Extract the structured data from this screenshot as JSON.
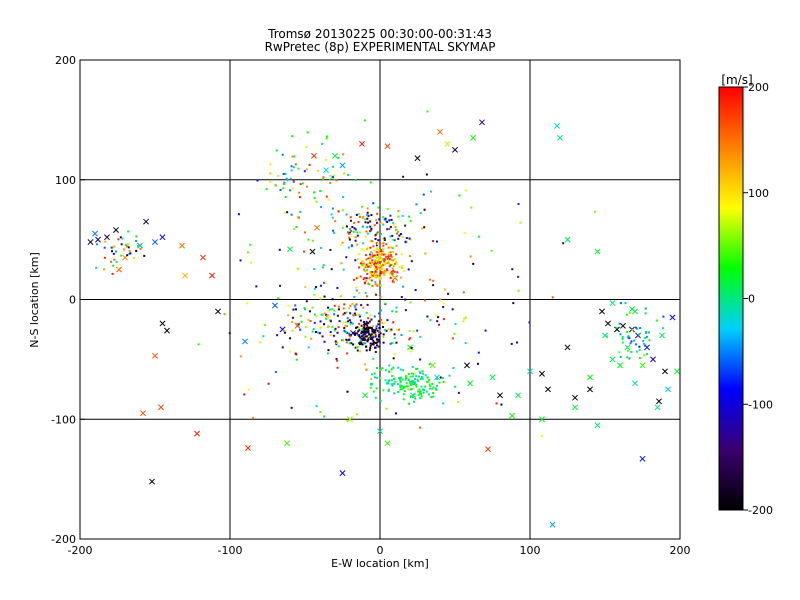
{
  "chart_data": {
    "type": "scatter",
    "title": "Tromsø 20130225 00:30:00-00:31:43",
    "subtitle": "RwPretec (8p) EXPERIMENTAL SKYMAP",
    "xlabel": "E-W location [km]",
    "ylabel": "N-S location [km]",
    "xlim": [
      -200,
      200
    ],
    "ylim": [
      -200,
      200
    ],
    "xticks": [
      "-200",
      "-100",
      "0",
      "100",
      "200"
    ],
    "yticks": [
      "-200",
      "-100",
      "0",
      "100",
      "200"
    ],
    "grid": true,
    "colorbar": {
      "label": "[m/s]",
      "range": [
        -200,
        200
      ],
      "ticks": [
        "200",
        "100",
        "0",
        "-100",
        "-200"
      ],
      "colors": [
        "#000000",
        "#3a0070",
        "#0000ff",
        "#00d0ff",
        "#00ff00",
        "#ffff00",
        "#ff8000",
        "#ff0000"
      ]
    },
    "series": [
      {
        "marker": "cross",
        "points": [
          [
            -193,
            48,
            -180
          ],
          [
            -188,
            50,
            -160
          ],
          [
            -182,
            52,
            -170
          ],
          [
            -176,
            58,
            -190
          ],
          [
            -156,
            65,
            -180
          ],
          [
            -145,
            52,
            -90
          ],
          [
            -150,
            48,
            -60
          ],
          [
            -190,
            55,
            -50
          ],
          [
            -160,
            45,
            -40
          ],
          [
            -152,
            -152,
            -200
          ],
          [
            -142,
            -26,
            -200
          ],
          [
            -145,
            -20,
            -190
          ],
          [
            -158,
            -95,
            160
          ],
          [
            -146,
            -90,
            170
          ],
          [
            -122,
            -112,
            190
          ],
          [
            -88,
            -124,
            180
          ],
          [
            -62,
            -120,
            40
          ],
          [
            -132,
            45,
            150
          ],
          [
            -118,
            35,
            180
          ],
          [
            -112,
            20,
            190
          ],
          [
            -130,
            20,
            120
          ],
          [
            -174,
            25,
            160
          ],
          [
            -170,
            35,
            140
          ],
          [
            -108,
            -10,
            -190
          ],
          [
            -70,
            -5,
            -60
          ],
          [
            -55,
            -22,
            170
          ],
          [
            -44,
            120,
            180
          ],
          [
            -42,
            60,
            150
          ],
          [
            -60,
            42,
            10
          ],
          [
            -45,
            40,
            -200
          ],
          [
            -32,
            102,
            50
          ],
          [
            -36,
            108,
            -20
          ],
          [
            -25,
            112,
            -40
          ],
          [
            -30,
            120,
            20
          ],
          [
            -12,
            130,
            190
          ],
          [
            5,
            128,
            170
          ],
          [
            25,
            118,
            -200
          ],
          [
            45,
            130,
            100
          ],
          [
            62,
            135,
            30
          ],
          [
            68,
            148,
            -140
          ],
          [
            50,
            125,
            -170
          ],
          [
            40,
            140,
            150
          ],
          [
            -5,
            20,
            140
          ],
          [
            10,
            18,
            170
          ],
          [
            -18,
            -28,
            -120
          ],
          [
            20,
            -40,
            30
          ],
          [
            35,
            -55,
            50
          ],
          [
            -10,
            -80,
            20
          ],
          [
            -20,
            -100,
            60
          ],
          [
            0,
            -110,
            0
          ],
          [
            -25,
            -145,
            -90
          ],
          [
            5,
            -120,
            40
          ],
          [
            22,
            -80,
            10
          ],
          [
            38,
            -65,
            -10
          ],
          [
            58,
            -55,
            -190
          ],
          [
            60,
            -70,
            20
          ],
          [
            75,
            -65,
            10
          ],
          [
            80,
            -80,
            -200
          ],
          [
            92,
            -80,
            10
          ],
          [
            88,
            -97,
            30
          ],
          [
            72,
            -125,
            170
          ],
          [
            100,
            -60,
            -10
          ],
          [
            108,
            -62,
            -200
          ],
          [
            112,
            -75,
            -190
          ],
          [
            125,
            -40,
            -180
          ],
          [
            130,
            -82,
            -190
          ],
          [
            140,
            -75,
            -200
          ],
          [
            145,
            -105,
            0
          ],
          [
            148,
            -10,
            -200
          ],
          [
            152,
            -20,
            -200
          ],
          [
            158,
            -25,
            -200
          ],
          [
            162,
            -22,
            -190
          ],
          [
            168,
            -25,
            -160
          ],
          [
            172,
            -30,
            -120
          ],
          [
            178,
            -40,
            -80
          ],
          [
            182,
            -50,
            -120
          ],
          [
            186,
            -85,
            -200
          ],
          [
            190,
            -60,
            -200
          ],
          [
            195,
            -15,
            -90
          ],
          [
            198,
            -60,
            20
          ],
          [
            165,
            -40,
            10
          ],
          [
            160,
            -55,
            20
          ],
          [
            175,
            -55,
            40
          ],
          [
            170,
            -70,
            -10
          ],
          [
            155,
            -50,
            10
          ],
          [
            185,
            -90,
            0
          ],
          [
            175,
            -133,
            -80
          ],
          [
            115,
            -188,
            -40
          ],
          [
            170,
            -10,
            20
          ],
          [
            150,
            -30,
            0
          ],
          [
            140,
            -65,
            30
          ],
          [
            125,
            50,
            10
          ],
          [
            120,
            135,
            -10
          ],
          [
            118,
            145,
            -20
          ],
          [
            145,
            40,
            20
          ],
          [
            108,
            -100,
            20
          ],
          [
            130,
            -90,
            10
          ],
          [
            188,
            -30,
            10
          ],
          [
            192,
            -75,
            -30
          ],
          [
            168,
            -8,
            10
          ],
          [
            155,
            -3,
            0
          ],
          [
            -65,
            -25,
            -90
          ],
          [
            -90,
            -35,
            -50
          ],
          [
            -150,
            -47,
            160
          ]
        ]
      },
      {
        "marker": "dot",
        "clusters": [
          {
            "cx": -8,
            "cy": -30,
            "rx": 18,
            "ry": 22,
            "n": 140,
            "vmin": -200,
            "vmax": -150
          },
          {
            "cx": 0,
            "cy": 28,
            "rx": 25,
            "ry": 28,
            "n": 220,
            "vmin": 60,
            "vmax": 200
          },
          {
            "cx": -5,
            "cy": 60,
            "rx": 45,
            "ry": 30,
            "n": 120,
            "vmin": -200,
            "vmax": 200
          },
          {
            "cx": 20,
            "cy": -70,
            "rx": 45,
            "ry": 25,
            "n": 160,
            "vmin": -20,
            "vmax": 40
          },
          {
            "cx": -20,
            "cy": -20,
            "rx": 70,
            "ry": 45,
            "n": 180,
            "vmin": -200,
            "vmax": 200
          },
          {
            "cx": 0,
            "cy": 0,
            "rx": 190,
            "ry": 190,
            "n": 220,
            "vmin": -200,
            "vmax": 200
          },
          {
            "cx": -50,
            "cy": 100,
            "rx": 60,
            "ry": 70,
            "n": 70,
            "vmin": -80,
            "vmax": 200
          },
          {
            "cx": -170,
            "cy": 40,
            "rx": 28,
            "ry": 30,
            "n": 40,
            "vmin": -200,
            "vmax": 200
          },
          {
            "cx": 170,
            "cy": -30,
            "rx": 28,
            "ry": 40,
            "n": 50,
            "vmin": -80,
            "vmax": 60
          }
        ]
      }
    ]
  }
}
